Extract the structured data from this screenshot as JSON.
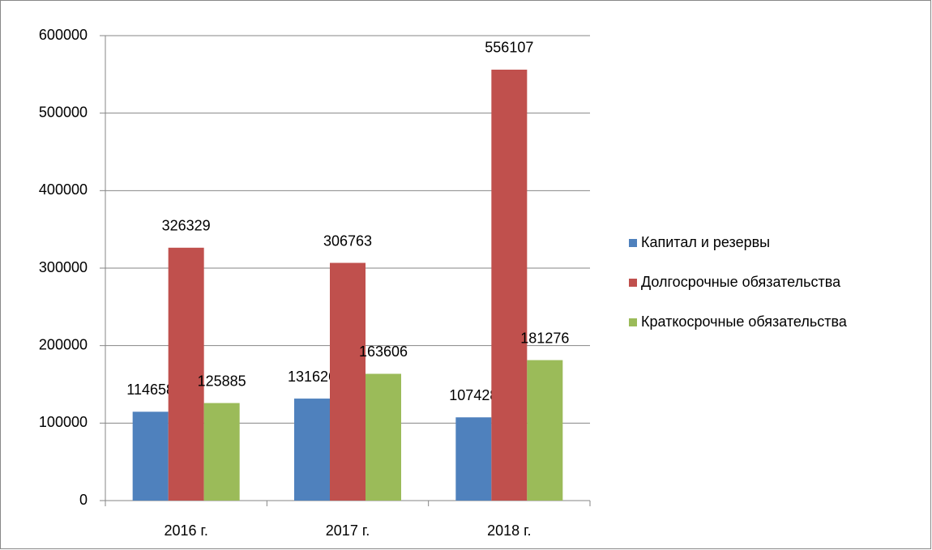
{
  "chart_data": {
    "type": "bar",
    "categories": [
      "2016 г.",
      "2017 г.",
      "2018 г."
    ],
    "series": [
      {
        "name": "Капитал и резервы",
        "color": "#4f81bd",
        "values": [
          114658,
          131626,
          107428
        ]
      },
      {
        "name": "Долгосрочные обязательства",
        "color": "#c0504d",
        "values": [
          326329,
          306763,
          556107
        ]
      },
      {
        "name": "Краткосрочные обязательства",
        "color": "#9bbb59",
        "values": [
          125885,
          163606,
          181276
        ]
      }
    ],
    "ylim": [
      0,
      600000
    ],
    "yticks": [
      0,
      100000,
      200000,
      300000,
      400000,
      500000,
      600000
    ],
    "grid": true,
    "legend": "right"
  }
}
